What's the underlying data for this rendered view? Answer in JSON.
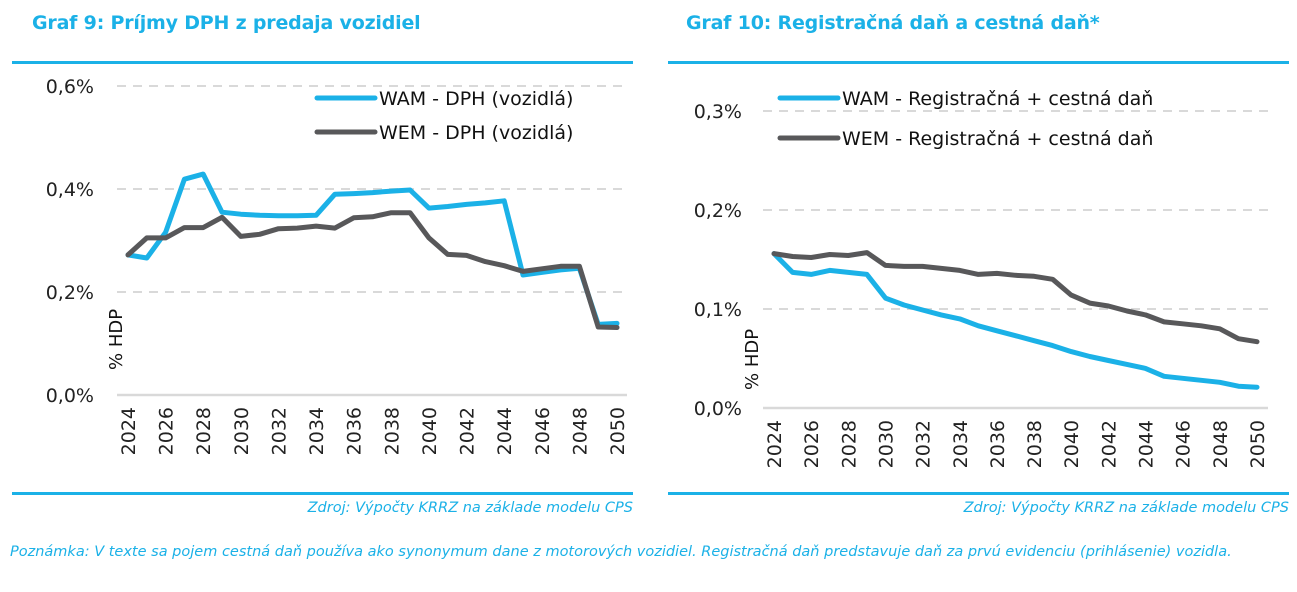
{
  "colors": {
    "accent": "#1bb1e7",
    "wam": "#1bb1e7",
    "wem": "#58585a",
    "grid": "#d9d9d9"
  },
  "note": "Poznámka: V texte sa pojem cestná daň používa ako synonymum dane z motorových vozidiel. Registračná daň predstavuje daň za prvú evidenciu (prihlásenie) vozidla.",
  "chart_data": [
    {
      "type": "line",
      "title": "Graf 9: Príjmy DPH z predaja vozidiel",
      "source": "Zdroj: Výpočty KRRZ na základe modelu CPS",
      "xlabel": "",
      "ylabel": "% HDP",
      "ylim": [
        0,
        0.6
      ],
      "yticks": [
        0,
        0.2,
        0.4,
        0.6
      ],
      "ytick_labels": [
        "0,0%",
        "0,2%",
        "0,4%",
        "0,6%"
      ],
      "x": [
        2024,
        2025,
        2026,
        2027,
        2028,
        2029,
        2030,
        2031,
        2032,
        2033,
        2034,
        2035,
        2036,
        2037,
        2038,
        2039,
        2040,
        2041,
        2042,
        2043,
        2044,
        2045,
        2046,
        2047,
        2048,
        2049,
        2050
      ],
      "xtick_labels": [
        "2024",
        "2026",
        "2028",
        "2030",
        "2032",
        "2034",
        "2036",
        "2038",
        "2040",
        "2042",
        "2044",
        "2046",
        "2048",
        "2050"
      ],
      "grid": true,
      "legend_position": "top-right",
      "series": [
        {
          "name": "WAM - DPH (vozidlá)",
          "color": "#1bb1e7",
          "values": [
            0.272,
            0.266,
            0.316,
            0.419,
            0.429,
            0.355,
            0.351,
            0.349,
            0.348,
            0.348,
            0.349,
            0.39,
            0.391,
            0.393,
            0.396,
            0.398,
            0.363,
            0.366,
            0.37,
            0.373,
            0.377,
            0.233,
            0.238,
            0.243,
            0.246,
            0.137,
            0.139
          ]
        },
        {
          "name": "WEM - DPH (vozidlá)",
          "color": "#58585a",
          "values": [
            0.272,
            0.305,
            0.305,
            0.325,
            0.325,
            0.345,
            0.308,
            0.312,
            0.323,
            0.324,
            0.328,
            0.324,
            0.344,
            0.346,
            0.354,
            0.354,
            0.305,
            0.273,
            0.271,
            0.259,
            0.251,
            0.24,
            0.245,
            0.25,
            0.25,
            0.132,
            0.131
          ]
        }
      ]
    },
    {
      "type": "line",
      "title": "Graf 10: Registračná daň a cestná daň*",
      "source": "Zdroj: Výpočty KRRZ na základe modelu CPS",
      "xlabel": "",
      "ylabel": "% HDP",
      "ylim": [
        0,
        0.3
      ],
      "yticks": [
        0,
        0.1,
        0.2,
        0.3
      ],
      "ytick_labels": [
        "0,0%",
        "0,1%",
        "0,2%",
        "0,3%"
      ],
      "x": [
        2024,
        2025,
        2026,
        2027,
        2028,
        2029,
        2030,
        2031,
        2032,
        2033,
        2034,
        2035,
        2036,
        2037,
        2038,
        2039,
        2040,
        2041,
        2042,
        2043,
        2044,
        2045,
        2046,
        2047,
        2048,
        2049,
        2050
      ],
      "xtick_labels": [
        "2024",
        "2026",
        "2028",
        "2030",
        "2032",
        "2034",
        "2036",
        "2038",
        "2040",
        "2042",
        "2044",
        "2046",
        "2048",
        "2050"
      ],
      "grid": true,
      "legend_position": "top-left",
      "series": [
        {
          "name": "WAM - Registračná + cestná daň",
          "color": "#1bb1e7",
          "values": [
            0.156,
            0.137,
            0.135,
            0.139,
            0.137,
            0.135,
            0.111,
            0.104,
            0.099,
            0.094,
            0.09,
            0.083,
            0.078,
            0.073,
            0.068,
            0.063,
            0.057,
            0.052,
            0.048,
            0.044,
            0.04,
            0.032,
            0.03,
            0.028,
            0.026,
            0.022,
            0.021
          ]
        },
        {
          "name": "WEM - Registračná + cestná daň",
          "color": "#58585a",
          "values": [
            0.156,
            0.153,
            0.152,
            0.155,
            0.154,
            0.157,
            0.144,
            0.143,
            0.143,
            0.141,
            0.139,
            0.135,
            0.136,
            0.134,
            0.133,
            0.13,
            0.114,
            0.106,
            0.103,
            0.098,
            0.094,
            0.087,
            0.085,
            0.083,
            0.08,
            0.07,
            0.067
          ]
        }
      ]
    }
  ]
}
